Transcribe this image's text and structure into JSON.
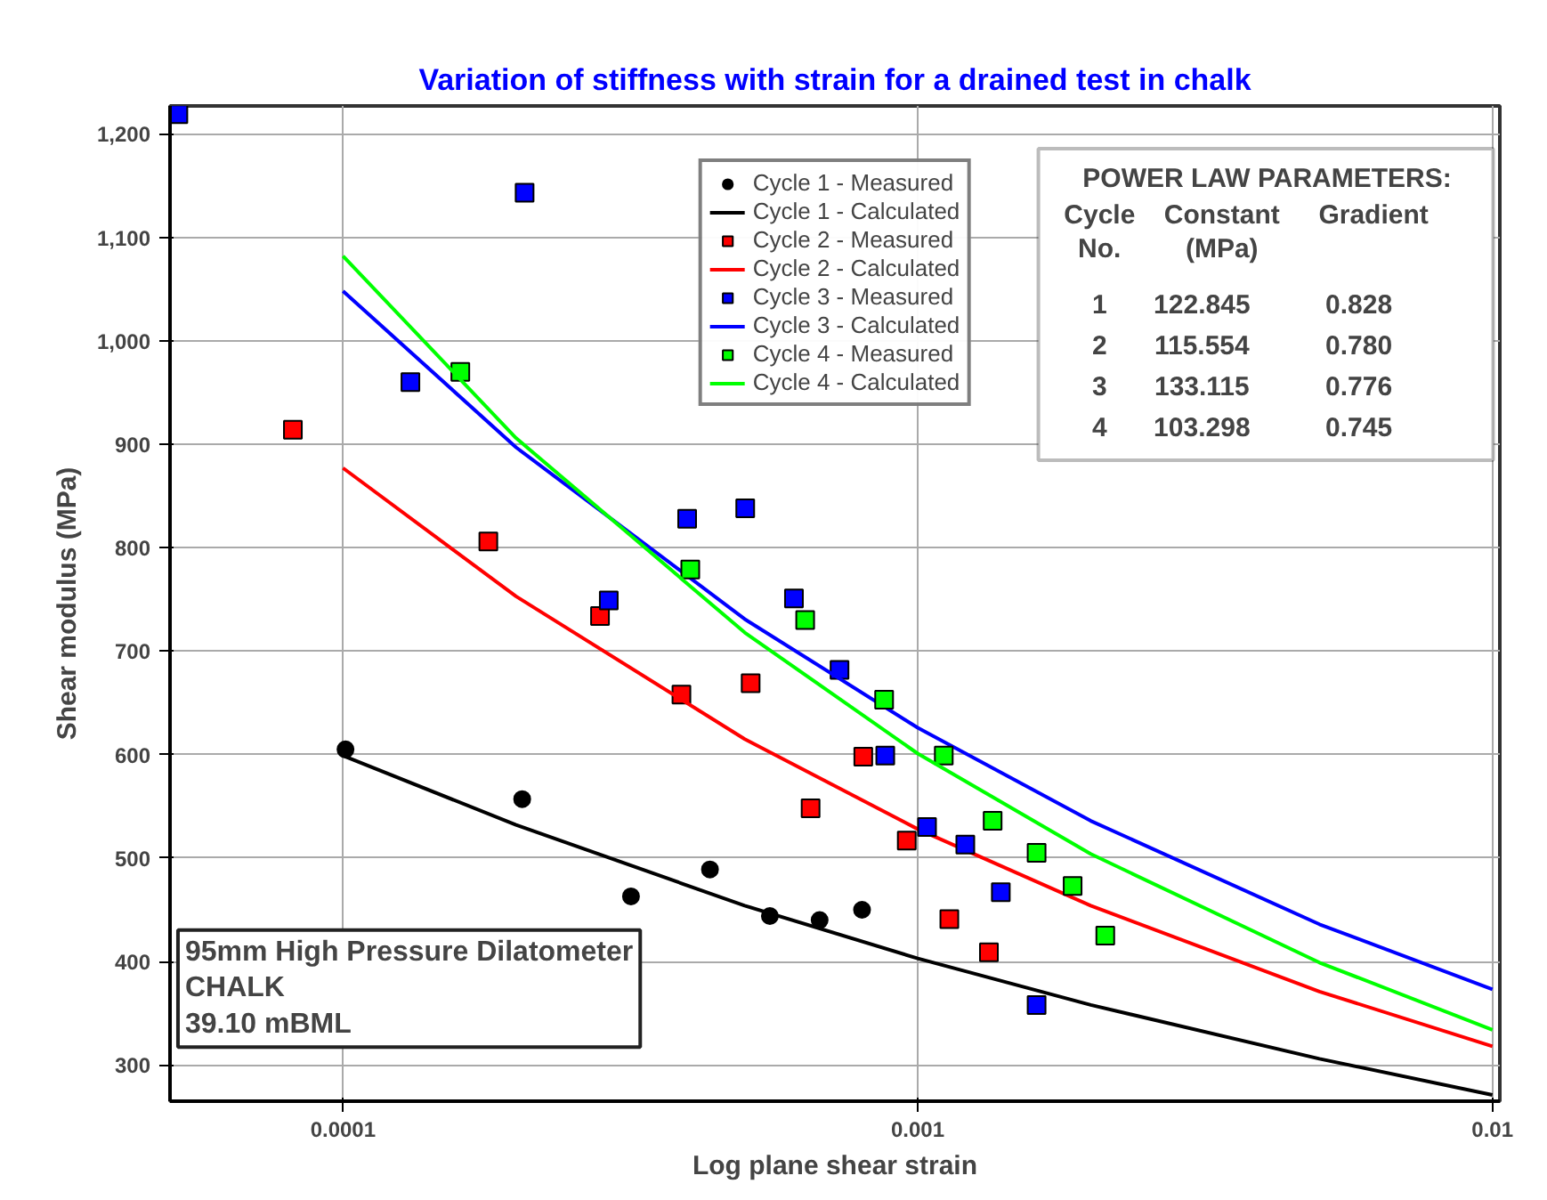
{
  "chart_data": {
    "type": "scatter",
    "title": "Variation of stiffness with strain for a drained test in chalk",
    "xlabel": "Log plane shear strain",
    "ylabel": "Shear modulus (MPa)",
    "log": "x",
    "xlim": [
      5e-05,
      0.0103
    ],
    "ylim": [
      265,
      1227
    ],
    "xticks": [
      0.0001,
      0.001,
      0.01
    ],
    "yticks": [
      300,
      400,
      500,
      600,
      700,
      800,
      900,
      {
        "value": 1000,
        "label": "1,000"
      },
      {
        "value": 1100,
        "label": "1,100"
      },
      {
        "value": 1200,
        "label": "1,200"
      }
    ],
    "grid": true,
    "legend": "top",
    "series": [
      {
        "name": "Cycle 1 - Measured",
        "marker": "circle",
        "color": "#000000",
        "x": [
          0.000101,
          0.000205,
          0.000317,
          0.000435,
          0.000553,
          0.000675,
          0.0008
        ],
        "values": [
          605,
          557,
          463,
          489,
          444,
          440,
          450
        ]
      },
      {
        "name": "Cycle 1 - Calculated",
        "type": "line",
        "marker": "none",
        "color": "#000000",
        "x": [
          0.0001,
          0.0002,
          0.0005,
          0.001,
          0.002,
          0.005,
          0.01
        ],
        "values": [
          599,
          532,
          454,
          403,
          358,
          306,
          271
        ]
      },
      {
        "name": "Cycle 2 - Measured",
        "marker": "square",
        "color": "#ff0000",
        "x": [
          8.18e-05,
          0.000179,
          0.00028,
          0.000388,
          0.000512,
          0.000651,
          0.000804,
          0.000957,
          0.001135,
          0.00133
        ],
        "values": [
          914,
          806,
          734,
          658,
          669,
          548,
          598,
          517,
          441,
          409
        ]
      },
      {
        "name": "Cycle 2 - Calculated",
        "type": "line",
        "marker": "none",
        "color": "#ff0000",
        "x": [
          0.0001,
          0.0002,
          0.0005,
          0.001,
          0.002,
          0.005,
          0.01
        ],
        "values": [
          877,
          753,
          615,
          528,
          454,
          371,
          318
        ]
      },
      {
        "name": "Cycle 3 - Measured",
        "marker": "square",
        "color": "#0000ff",
        "x": [
          5.17e-05,
          0.000131,
          0.000207,
          0.00029,
          0.000397,
          0.000501,
          0.000609,
          0.000731,
          0.000878,
          0.001038,
          0.00121,
          0.001395,
          0.00161
        ],
        "values": [
          1219,
          960,
          1143,
          749,
          828,
          838,
          751,
          682,
          599,
          530,
          513,
          467,
          358
        ]
      },
      {
        "name": "Cycle 3 - Calculated",
        "type": "line",
        "marker": "none",
        "color": "#0000ff",
        "x": [
          0.0001,
          0.0002,
          0.0005,
          0.001,
          0.002,
          0.005,
          0.01
        ],
        "values": [
          1048,
          897,
          731,
          626,
          536,
          436,
          373
        ]
      },
      {
        "name": "Cycle 4 - Measured",
        "marker": "square",
        "color": "#00ff00",
        "x": [
          0.00016,
          0.000402,
          0.000637,
          0.000874,
          0.00111,
          0.00135,
          0.00161,
          0.00186,
          0.00212
        ],
        "values": [
          970,
          779,
          730,
          653,
          599,
          536,
          505,
          473,
          425
        ]
      },
      {
        "name": "Cycle 4 - Calculated",
        "type": "line",
        "marker": "none",
        "color": "#00ff00",
        "x": [
          0.0001,
          0.0002,
          0.0005,
          0.001,
          0.002,
          0.005,
          0.01
        ],
        "values": [
          1082,
          906,
          718,
          601,
          504,
          399,
          334
        ]
      }
    ],
    "annotations": [
      "POWER LAW PARAMETERS:",
      "Cycle\nNo.",
      "Constant\n(MPa)",
      "Gradient",
      "1",
      "122.845",
      "0.828",
      "2",
      "115.554",
      "0.780",
      "3",
      "133.115",
      "0.776",
      "4",
      "103.298",
      "0.745",
      "95mm High Pressure Dilatometer\nCHALK\n39.10 mBML"
    ]
  }
}
